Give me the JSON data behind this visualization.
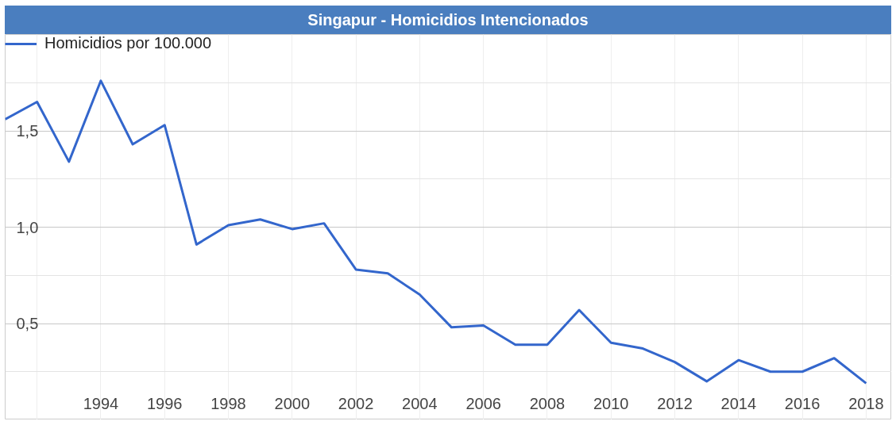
{
  "chart_data": {
    "type": "line",
    "title": "Singapur - Homicidios Intencionados",
    "x": [
      1991,
      1992,
      1993,
      1994,
      1995,
      1996,
      1997,
      1998,
      1999,
      2000,
      2001,
      2002,
      2003,
      2004,
      2005,
      2006,
      2007,
      2008,
      2009,
      2010,
      2011,
      2012,
      2013,
      2014,
      2015,
      2016,
      2017,
      2018
    ],
    "series": [
      {
        "name": "Homicidios por 100.000",
        "color": "#3366cc",
        "values": [
          1.56,
          1.65,
          1.34,
          1.76,
          1.43,
          1.53,
          0.91,
          1.01,
          1.04,
          0.99,
          1.02,
          0.78,
          0.76,
          0.65,
          0.48,
          0.49,
          0.39,
          0.39,
          0.57,
          0.4,
          0.37,
          0.3,
          0.2,
          0.31,
          0.25,
          0.25,
          0.32,
          0.19
        ]
      }
    ],
    "xlim": [
      1991,
      2018.8
    ],
    "xticks": [
      {
        "value": 1992,
        "label": null
      },
      1994,
      1996,
      1998,
      2000,
      2002,
      2004,
      2006,
      2008,
      2010,
      2012,
      2014,
      2016,
      2018
    ],
    "ylim": [
      0,
      2
    ],
    "yticks": [
      {
        "value": 0.25,
        "label": null
      },
      {
        "value": 0.5,
        "label": "0,5"
      },
      {
        "value": 0.75,
        "label": null
      },
      {
        "value": 1.0,
        "label": "1,0"
      },
      {
        "value": 1.25,
        "label": null
      },
      {
        "value": 1.5,
        "label": "1,5"
      },
      {
        "value": 1.75,
        "label": null
      }
    ],
    "grid": true,
    "legend": "top left"
  }
}
